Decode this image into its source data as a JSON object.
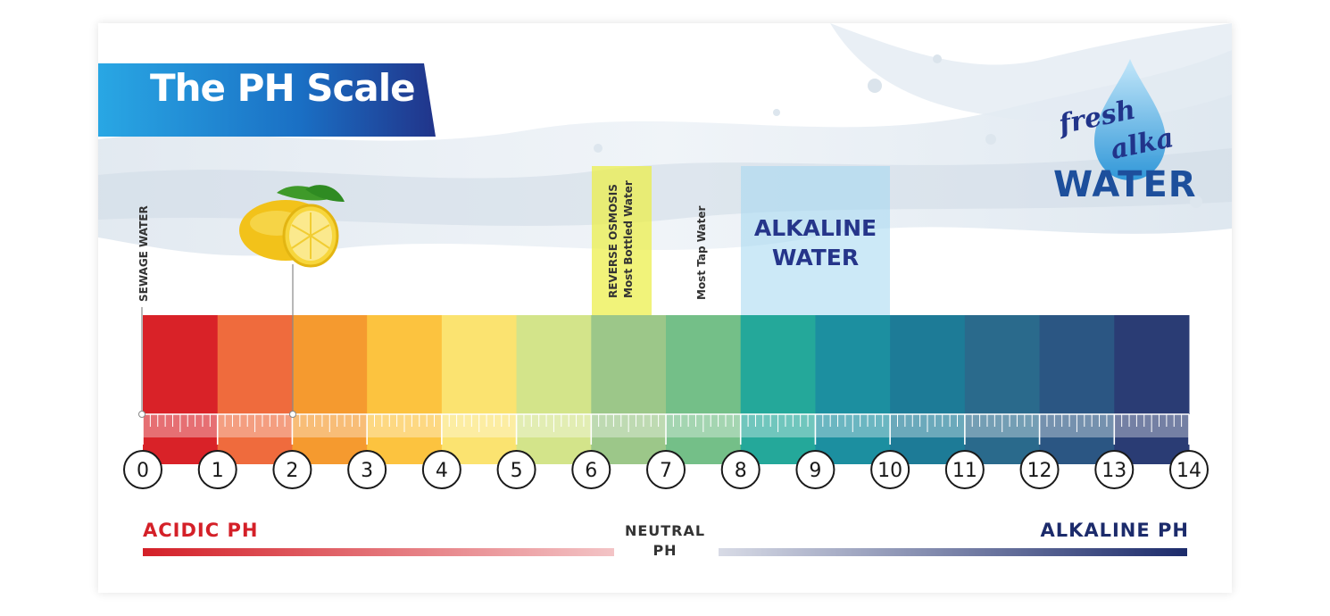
{
  "title": "The PH Scale",
  "logo": {
    "line1": "fresh",
    "line2": "alka",
    "line3": "WATER"
  },
  "markers": {
    "sewage": "SEWAGE WATER",
    "ro_line1": "REVERSE OSMOSIS",
    "ro_line2": "Most Bottled Water",
    "tap": "Most Tap Water",
    "alkaline_water_line1": "ALKALINE",
    "alkaline_water_line2": "WATER"
  },
  "scale": {
    "numbers": [
      "0",
      "1",
      "2",
      "3",
      "4",
      "5",
      "6",
      "7",
      "8",
      "9",
      "10",
      "11",
      "12",
      "13",
      "14"
    ],
    "colors": [
      "#d92228",
      "#ef6b3d",
      "#f59a2f",
      "#fcc33f",
      "#fbe370",
      "#d3e48a",
      "#9cc789",
      "#74bf88",
      "#24a89a",
      "#1c8fa0",
      "#1d7b97",
      "#2a6a8c",
      "#2b5683",
      "#2a3c74"
    ],
    "end_color": "#1c2b6b"
  },
  "bottom": {
    "acidic": "ACIDIC PH",
    "neutral_line1": "NEUTRAL",
    "neutral_line2": "PH",
    "alkaline": "ALKALINE PH"
  },
  "colors": {
    "banner": "#1e8fd6",
    "banner_dark": "#21348a",
    "acid": "#d42028",
    "alkaline": "#1c2b6b"
  }
}
